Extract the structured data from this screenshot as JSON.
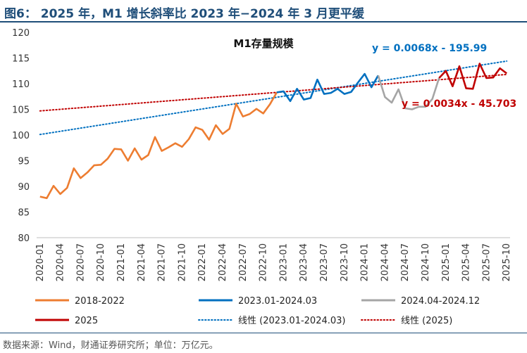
{
  "figure": {
    "title": "图6： 2025 年，M1 增长斜率比 2023 年−2024 年 3 月更平缓",
    "source": "数据来源：Wind，财通证券研究所；单位：万亿元。"
  },
  "chart_data": {
    "type": "line",
    "title": "M1存量规模",
    "xlabel": "",
    "ylabel": "",
    "ylim": [
      80,
      120
    ],
    "yticks": [
      80,
      85,
      90,
      95,
      100,
      105,
      110,
      115,
      120
    ],
    "xticks": [
      "2020-01",
      "2020-04",
      "2020-07",
      "2020-10",
      "2021-01",
      "2021-04",
      "2021-07",
      "2021-10",
      "2022-01",
      "2022-04",
      "2022-07",
      "2022-10",
      "2023-01",
      "2023-04",
      "2023-07",
      "2023-10",
      "2024-01",
      "2024-04",
      "2024-07",
      "2024-10",
      "2025-01",
      "2025-04",
      "2025-07",
      "2025-10"
    ],
    "grid": false,
    "legend_position": "bottom",
    "colors": {
      "s2018": "#ed7d31",
      "s2023": "#0070c0",
      "s2024": "#a5a5a5",
      "s2025": "#c00000"
    },
    "series": [
      {
        "name": "2018-2022",
        "color": "#ed7d31",
        "x": [
          "2020-01",
          "2020-02",
          "2020-03",
          "2020-04",
          "2020-05",
          "2020-06",
          "2020-07",
          "2020-08",
          "2020-09",
          "2020-10",
          "2020-11",
          "2020-12",
          "2021-01",
          "2021-02",
          "2021-03",
          "2021-04",
          "2021-05",
          "2021-06",
          "2021-07",
          "2021-08",
          "2021-09",
          "2021-10",
          "2021-11",
          "2021-12",
          "2022-01",
          "2022-02",
          "2022-03",
          "2022-04",
          "2022-05",
          "2022-06",
          "2022-07",
          "2022-08",
          "2022-09",
          "2022-10",
          "2022-11",
          "2022-12"
        ],
        "values": [
          88.0,
          87.7,
          90.1,
          88.5,
          89.7,
          93.5,
          91.6,
          92.7,
          94.1,
          94.2,
          95.4,
          97.3,
          97.2,
          95.0,
          97.4,
          95.2,
          96.1,
          99.6,
          96.9,
          97.6,
          98.4,
          97.7,
          99.2,
          101.5,
          101.0,
          99.1,
          101.9,
          100.2,
          101.2,
          106.1,
          103.6,
          104.1,
          105.1,
          104.2,
          106.0,
          108.3
        ]
      },
      {
        "name": "2023.01-2024.03",
        "color": "#0070c0",
        "x": [
          "2022-12",
          "2023-01",
          "2023-02",
          "2023-03",
          "2023-04",
          "2023-05",
          "2023-06",
          "2023-07",
          "2023-08",
          "2023-09",
          "2023-10",
          "2023-11",
          "2023-12",
          "2024-01",
          "2024-02",
          "2024-03"
        ],
        "values": [
          108.3,
          108.5,
          106.6,
          109.0,
          106.9,
          107.2,
          110.8,
          108.0,
          108.2,
          109.0,
          108.0,
          108.4,
          110.2,
          111.9,
          109.3,
          111.6
        ]
      },
      {
        "name": "2024.04-2024.12",
        "color": "#a5a5a5",
        "x": [
          "2024-03",
          "2024-04",
          "2024-05",
          "2024-06",
          "2024-07",
          "2024-08",
          "2024-09",
          "2024-10",
          "2024-11",
          "2024-12"
        ],
        "values": [
          111.6,
          107.4,
          106.3,
          108.9,
          105.2,
          105.0,
          105.5,
          105.5,
          107.0,
          111.1
        ]
      },
      {
        "name": "2025",
        "color": "#c00000",
        "x": [
          "2024-12",
          "2025-01",
          "2025-02",
          "2025-03",
          "2025-04",
          "2025-05",
          "2025-06",
          "2025-07",
          "2025-08",
          "2025-09",
          "2025-10"
        ],
        "values": [
          111.1,
          112.5,
          109.5,
          113.4,
          109.1,
          109.0,
          113.9,
          111.1,
          111.2,
          113.0,
          112.0
        ]
      }
    ],
    "trendlines": [
      {
        "name": "线性 (2023.01-2024.03)",
        "color": "#0070c0",
        "style": "dotted",
        "equation": "y = 0.0068x - 195.99",
        "from": {
          "x": "2020-01",
          "y": 100.1
        },
        "to": {
          "x": "2025-10",
          "y": 114.4
        }
      },
      {
        "name": "线性 (2025)",
        "color": "#c00000",
        "style": "dotted",
        "equation": "y = 0.0034x - 45.703",
        "from": {
          "x": "2020-01",
          "y": 104.7
        },
        "to": {
          "x": "2025-10",
          "y": 111.8
        }
      }
    ]
  }
}
